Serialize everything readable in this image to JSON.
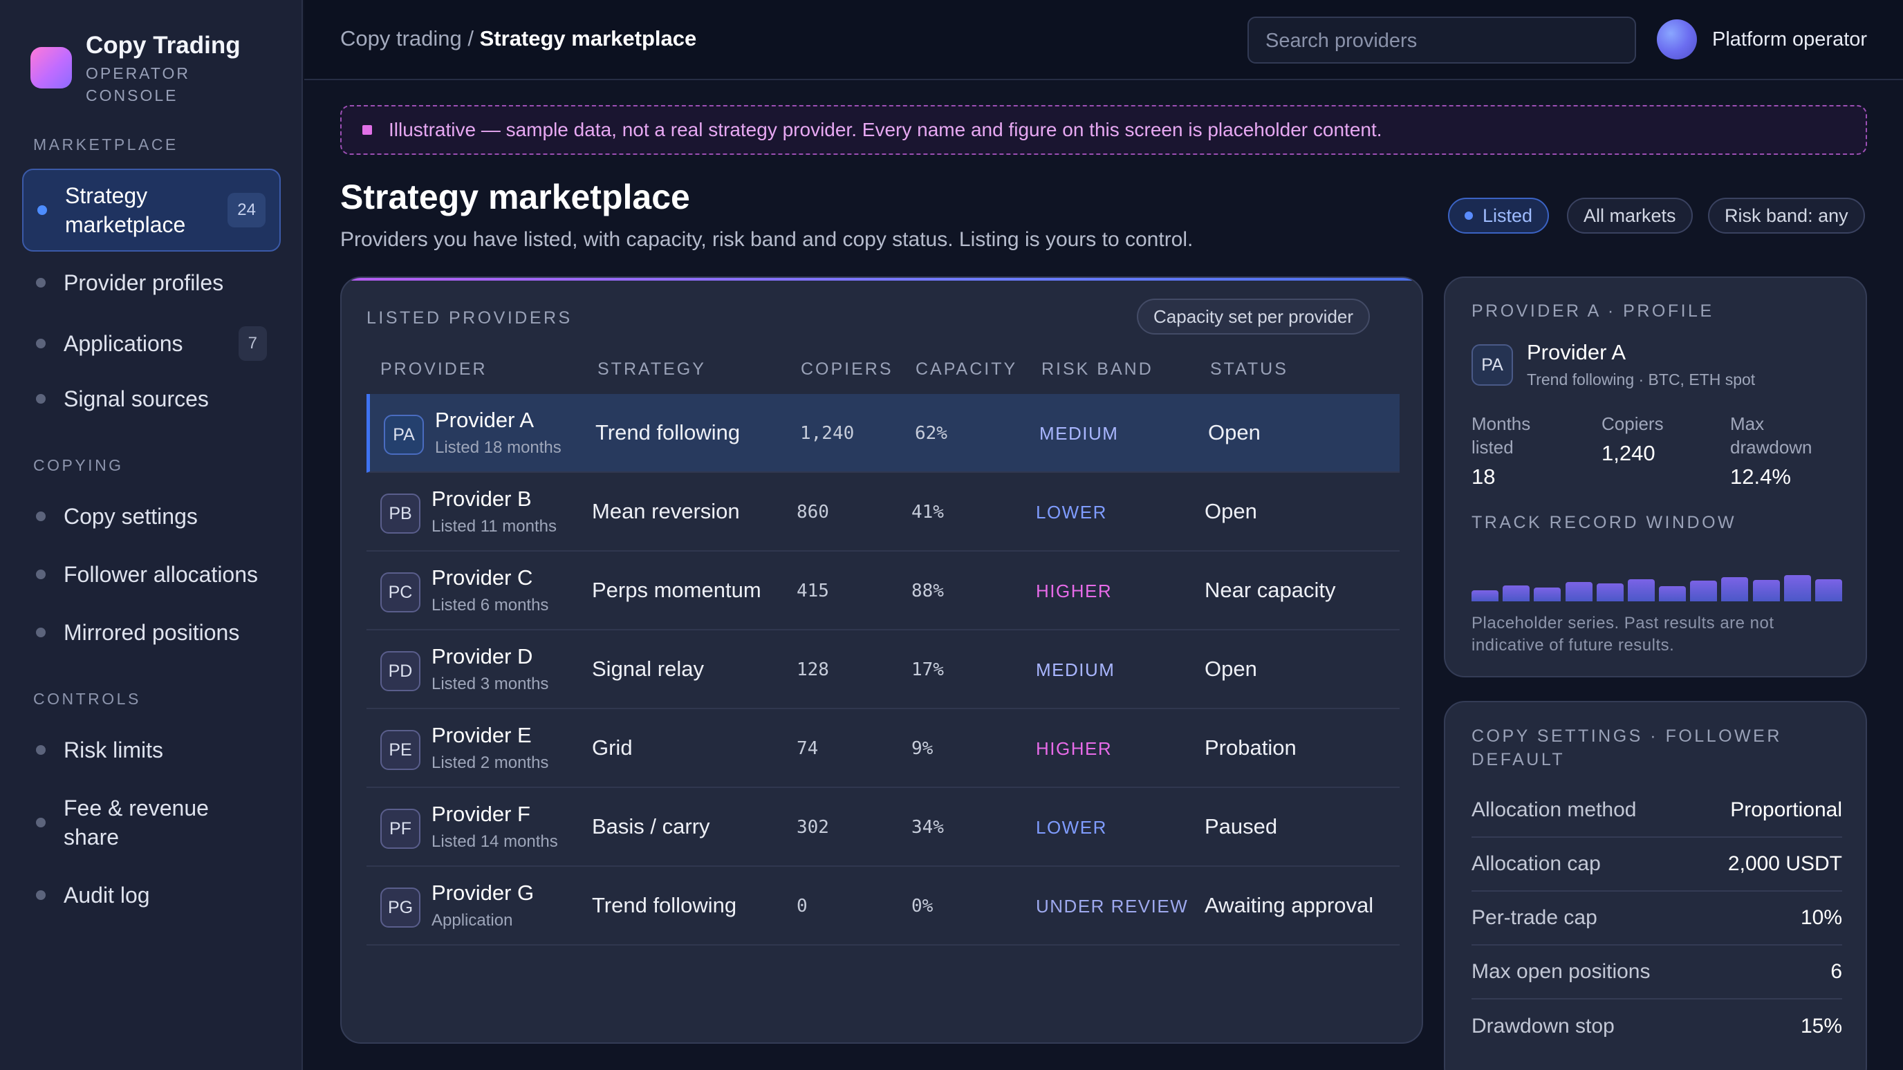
{
  "brand": {
    "title": "Copy Trading",
    "sub1": "OPERATOR",
    "sub2": "CONSOLE"
  },
  "sidebar": {
    "sections": [
      {
        "label": "MARKETPLACE"
      },
      {
        "label": "COPYING"
      },
      {
        "label": "CONTROLS"
      }
    ],
    "items": [
      {
        "label": "Strategy marketplace",
        "count": "24",
        "active": true
      },
      {
        "label": "Provider profiles"
      },
      {
        "label": "Applications",
        "count": "7"
      },
      {
        "label": "Signal sources"
      },
      {
        "label": "Copy settings"
      },
      {
        "label": "Follower allocations"
      },
      {
        "label": "Mirrored positions"
      },
      {
        "label": "Risk limits"
      },
      {
        "label": "Fee & revenue share"
      },
      {
        "label": "Audit log"
      }
    ]
  },
  "header": {
    "breadcrumb_parent": "Copy trading",
    "breadcrumb_sep": " / ",
    "breadcrumb_current": "Strategy marketplace",
    "search_placeholder": "Search providers",
    "user_name": "Platform operator"
  },
  "banner": "Illustrative — sample data, not a real strategy provider. Every name and figure on this screen is placeholder content.",
  "main": {
    "title": "Strategy marketplace",
    "subtitle": "Providers you have listed, with capacity, risk band and copy status. Listing is yours to control.",
    "filters": [
      "Listed",
      "All markets",
      "Risk band: any"
    ]
  },
  "table": {
    "caption": "LISTED PROVIDERS",
    "chip": "Capacity set per provider",
    "columns": [
      "PROVIDER",
      "STRATEGY",
      "COPIERS",
      "CAPACITY",
      "RISK BAND",
      "STATUS"
    ],
    "rows": [
      {
        "initials": "PA",
        "name": "Provider A",
        "sub": "Listed 18 months",
        "strategy": "Trend following",
        "copiers": "1,240",
        "capacity": "62%",
        "risk": "MEDIUM",
        "status": "Open"
      },
      {
        "initials": "PB",
        "name": "Provider B",
        "sub": "Listed 11 months",
        "strategy": "Mean reversion",
        "copiers": "860",
        "capacity": "41%",
        "risk": "LOWER",
        "status": "Open"
      },
      {
        "initials": "PC",
        "name": "Provider C",
        "sub": "Listed 6 months",
        "strategy": "Perps momentum",
        "copiers": "415",
        "capacity": "88%",
        "risk": "HIGHER",
        "status": "Near capacity"
      },
      {
        "initials": "PD",
        "name": "Provider D",
        "sub": "Listed 3 months",
        "strategy": "Signal relay",
        "copiers": "128",
        "capacity": "17%",
        "risk": "MEDIUM",
        "status": "Open"
      },
      {
        "initials": "PE",
        "name": "Provider E",
        "sub": "Listed 2 months",
        "strategy": "Grid",
        "copiers": "74",
        "capacity": "9%",
        "risk": "HIGHER",
        "status": "Probation"
      },
      {
        "initials": "PF",
        "name": "Provider F",
        "sub": "Listed 14 months",
        "strategy": "Basis / carry",
        "copiers": "302",
        "capacity": "34%",
        "risk": "LOWER",
        "status": "Paused"
      },
      {
        "initials": "PG",
        "name": "Provider G",
        "sub": "Application",
        "strategy": "Trend following",
        "copiers": "0",
        "capacity": "0%",
        "risk": "UNDER REVIEW",
        "status": "Awaiting approval"
      }
    ]
  },
  "profile": {
    "caption": "PROVIDER A · PROFILE",
    "initials": "PA",
    "name": "Provider A",
    "sub": "Trend following · BTC, ETH spot",
    "stats": [
      {
        "label1": "Months",
        "label2": "listed",
        "value": "18"
      },
      {
        "label1": "Copiers",
        "label2": "",
        "value": "1,240"
      },
      {
        "label1": "Max",
        "label2": "drawdown",
        "value": "12.4%"
      }
    ],
    "track_caption": "TRACK RECORD WINDOW",
    "track_levels": [
      0.23,
      0.33,
      0.28,
      0.4,
      0.37,
      0.46,
      0.32,
      0.43,
      0.5,
      0.44,
      0.54,
      0.46
    ],
    "note": "Placeholder series. Past results are not indicative of future results."
  },
  "copy_settings": {
    "caption": "COPY SETTINGS · FOLLOWER DEFAULT",
    "rows": [
      {
        "key": "Allocation method",
        "value": "Proportional"
      },
      {
        "key": "Allocation cap",
        "value": "2,000 USDT"
      },
      {
        "key": "Per-trade cap",
        "value": "10%"
      },
      {
        "key": "Max open positions",
        "value": "6"
      },
      {
        "key": "Drawdown stop",
        "value": "15%"
      }
    ]
  }
}
